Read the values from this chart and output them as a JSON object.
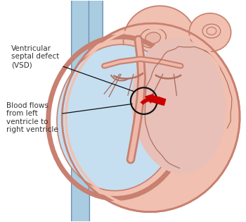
{
  "bg_color": "#ffffff",
  "heart_skin": "#f2c0b0",
  "heart_edge": "#c88070",
  "lv_fill": "#c5dff0",
  "rv_fill": "#f0c8c0",
  "wall_fill": "#f0b8a8",
  "vessel_fill": "#aacce0",
  "vessel_edge": "#7090b8",
  "arrow_color": "#cc0000",
  "dark_edge": "#b07060",
  "label1": "Ventricular\nseptal defect\n(VSD)",
  "label2": "Blood flows\nfrom left\nventricle to\nright ventricle",
  "label_color": "#333333",
  "label_fontsize": 7.5,
  "circle_color": "#111111",
  "line_color": "#111111"
}
